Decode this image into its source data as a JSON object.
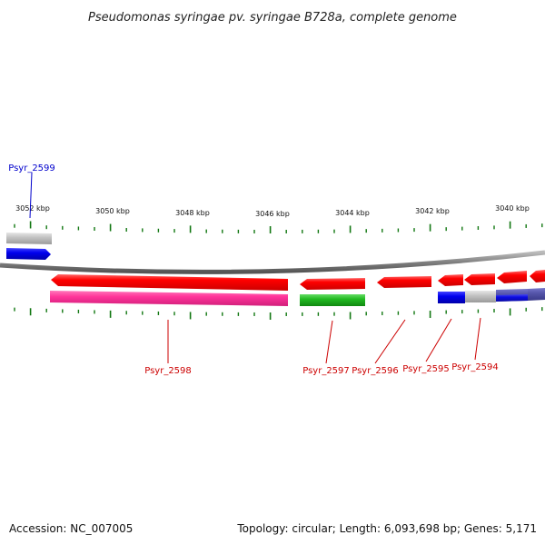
{
  "title": "Pseudomonas syringae pv. syringae B728a, complete genome",
  "scale": {
    "unit": "kbp",
    "ticks": [
      {
        "label": "3052 kbp",
        "value": 3052
      },
      {
        "label": "3050 kbp",
        "value": 3050
      },
      {
        "label": "3048 kbp",
        "value": 3048
      },
      {
        "label": "3046 kbp",
        "value": 3046
      },
      {
        "label": "3044 kbp",
        "value": 3044
      },
      {
        "label": "3042 kbp",
        "value": 3042
      },
      {
        "label": "3040 kbp",
        "value": 3040
      }
    ]
  },
  "genes": [
    {
      "label": "Psyr_2599",
      "color": "#0000cc"
    },
    {
      "label": "Psyr_2598",
      "color": "#cc0000"
    },
    {
      "label": "Psyr_2597",
      "color": "#cc0000"
    },
    {
      "label": "Psyr_2596",
      "color": "#cc0000"
    },
    {
      "label": "Psyr_2595",
      "color": "#cc0000"
    },
    {
      "label": "Psyr_2594",
      "color": "#cc0000"
    }
  ],
  "colors": {
    "forward_strand": "#ff0000",
    "reverse_cog_pink": "#ff3399",
    "reverse_cog_green": "#22bb22",
    "cog_blue": "#0000ee",
    "cog_grey": "#c0c0c0",
    "cog_slate": "#5555aa",
    "backbone": "#888888",
    "tick_green": "#117711"
  },
  "footer": {
    "accession": "Accession: NC_007005",
    "summary": "Topology: circular; Length: 6,093,698 bp; Genes: 5,171"
  }
}
